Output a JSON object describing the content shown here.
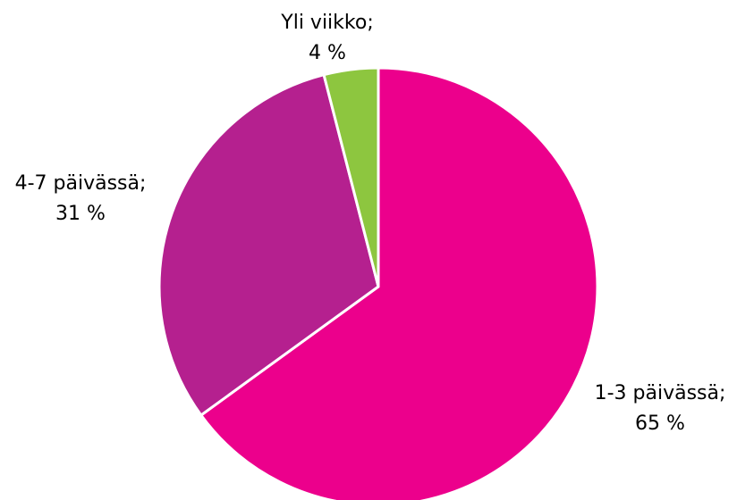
{
  "chart_data": {
    "type": "pie",
    "slices": [
      {
        "label": "1-3 päivässä",
        "value_text": "65 %",
        "value": 65,
        "color": "#ec008c"
      },
      {
        "label": "4-7 päivässä",
        "value_text": "31 %",
        "value": 31,
        "color": "#b5208f"
      },
      {
        "label": "Yli viikko",
        "value_text": "4 %",
        "value": 4,
        "color": "#8dc63f"
      }
    ],
    "start": "12 o'clock",
    "direction": "clockwise",
    "legend": "none"
  }
}
